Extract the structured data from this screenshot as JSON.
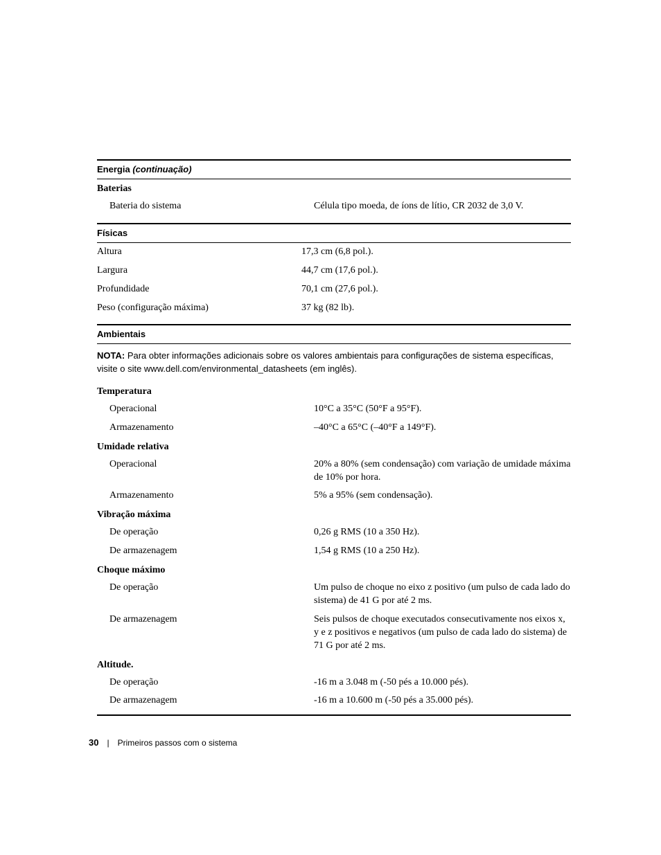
{
  "sections": {
    "energia": {
      "heading_main": "Energia",
      "heading_cont": "(continuação)",
      "baterias_head": "Baterias",
      "bateria_sistema_label": "Bateria do sistema",
      "bateria_sistema_value": "Célula tipo moeda, de íons de lítio, CR 2032 de 3,0 V."
    },
    "fisicas": {
      "heading": "Físicas",
      "altura_label": "Altura",
      "altura_value": "17,3 cm (6,8 pol.).",
      "largura_label": "Largura",
      "largura_value": "44,7 cm (17,6 pol.).",
      "profundidade_label": "Profundidade",
      "profundidade_value": "70,1 cm (27,6 pol.).",
      "peso_label": "Peso (configuração máxima)",
      "peso_value": "37 kg (82 lb)."
    },
    "ambientais": {
      "heading": "Ambientais",
      "nota_label": "NOTA:",
      "nota_text": " Para obter informações adicionais sobre os valores ambientais para configurações de sistema específicas, visite o site www.dell.com/environmental_datasheets (em inglês).",
      "temperatura_head": "Temperatura",
      "temp_op_label": "Operacional",
      "temp_op_value": "10°C a 35°C (50°F a 95°F).",
      "temp_arm_label": "Armazenamento",
      "temp_arm_value": "–40°C a 65°C (–40°F a 149°F).",
      "umidade_head": "Umidade relativa",
      "umid_op_label": "Operacional",
      "umid_op_value": "20% a 80% (sem condensação) com variação de umidade máxima de 10% por hora.",
      "umid_arm_label": "Armazenamento",
      "umid_arm_value": "5% a 95% (sem condensação).",
      "vibracao_head": "Vibração máxima",
      "vib_op_label": "De operação",
      "vib_op_value": "0,26 g RMS (10 a 350 Hz).",
      "vib_arm_label": "De armazenagem",
      "vib_arm_value": "1,54 g RMS (10 a 250 Hz).",
      "choque_head": "Choque máximo",
      "choq_op_label": "De operação",
      "choq_op_value": "Um pulso de choque no eixo z positivo (um pulso de cada lado do sistema) de 41 G por até 2 ms.",
      "choq_arm_label": "De armazenagem",
      "choq_arm_value": "Seis pulsos de choque executados consecutivamente nos eixos x, y e z positivos e negativos (um pulso de cada lado do sistema) de 71 G por até 2 ms.",
      "altitude_head": "Altitude.",
      "alt_op_label": "De operação",
      "alt_op_value": "-16 m a 3.048 m (-50 pés a 10.000 pés).",
      "alt_arm_label": "De armazenagem",
      "alt_arm_value": "-16 m a 10.600 m (-50 pés a 35.000 pés)."
    }
  },
  "footer": {
    "page_number": "30",
    "doc_title": "Primeiros passos com o sistema"
  }
}
